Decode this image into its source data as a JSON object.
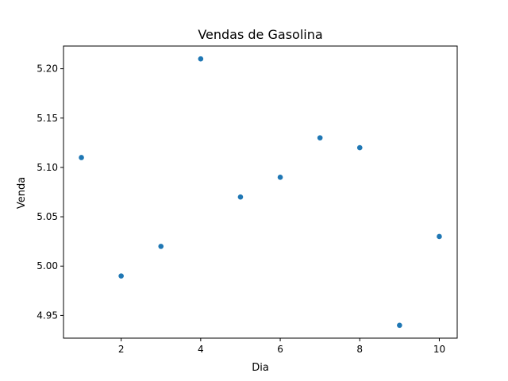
{
  "chart_data": {
    "type": "scatter",
    "title": "Vendas de Gasolina",
    "xlabel": "Dia",
    "ylabel": "Venda",
    "x": [
      1,
      2,
      3,
      4,
      5,
      6,
      7,
      8,
      9,
      10
    ],
    "y": [
      5.11,
      4.99,
      5.02,
      5.21,
      5.07,
      5.09,
      5.13,
      5.12,
      4.94,
      5.03
    ],
    "xlim": [
      0.55,
      10.45
    ],
    "ylim": [
      4.927,
      5.223
    ],
    "xticks": [
      2,
      4,
      6,
      8,
      10
    ],
    "xtick_labels": [
      "2",
      "4",
      "6",
      "8",
      "10"
    ],
    "yticks": [
      4.95,
      5.0,
      5.05,
      5.1,
      5.15,
      5.2
    ],
    "ytick_labels": [
      "4.95",
      "5.00",
      "5.05",
      "5.10",
      "5.15",
      "5.20"
    ],
    "grid": false,
    "marker_color": "#1f77b4"
  }
}
